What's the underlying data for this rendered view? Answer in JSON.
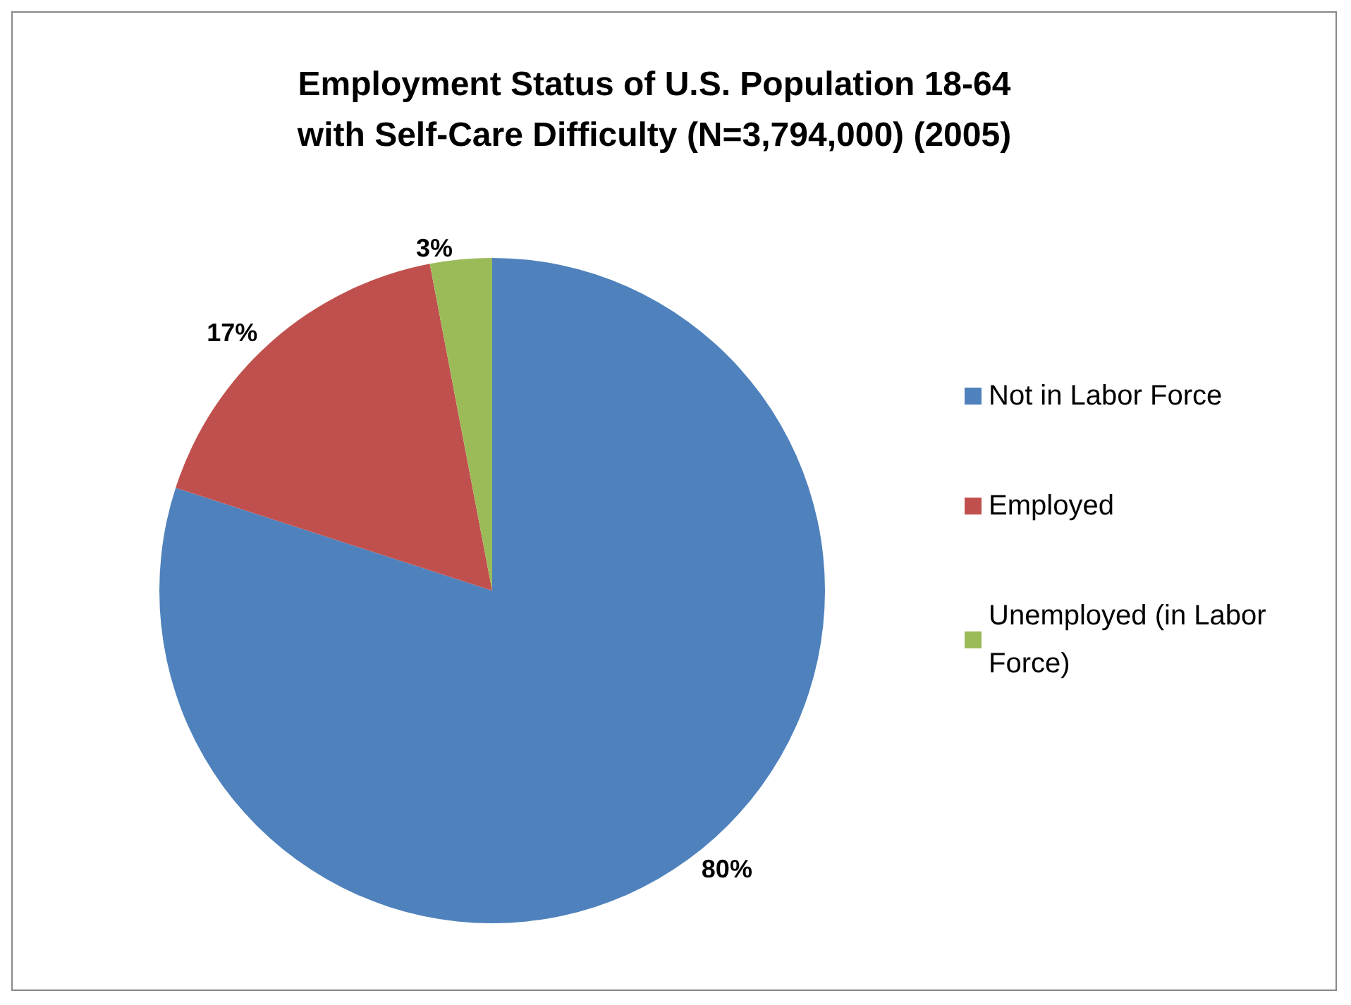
{
  "chart_data": {
    "type": "pie",
    "title": "Employment Status of U.S. Population 18-64\nwith Self-Care Difficulty (N=3,794,000) (2005)",
    "categories": [
      "Not in Labor Force",
      "Employed",
      "Unemployed (in Labor Force)"
    ],
    "values": [
      80,
      17,
      3
    ],
    "colors": [
      "#4f81bd",
      "#c0504d",
      "#9bbb59"
    ],
    "value_labels": [
      "80%",
      "17%",
      "3%"
    ],
    "legend": "right"
  }
}
